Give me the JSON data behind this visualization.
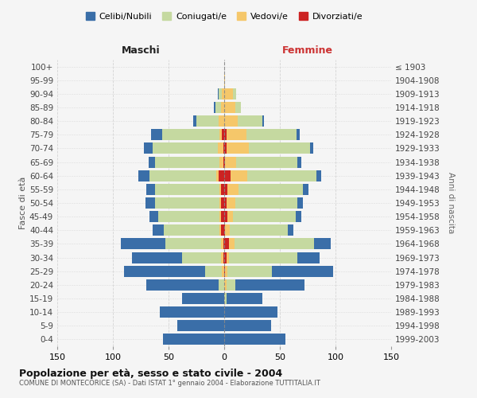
{
  "age_groups": [
    "0-4",
    "5-9",
    "10-14",
    "15-19",
    "20-24",
    "25-29",
    "30-34",
    "35-39",
    "40-44",
    "45-49",
    "50-54",
    "55-59",
    "60-64",
    "65-69",
    "70-74",
    "75-79",
    "80-84",
    "85-89",
    "90-94",
    "95-99",
    "100+"
  ],
  "birth_years": [
    "1999-2003",
    "1994-1998",
    "1989-1993",
    "1984-1988",
    "1979-1983",
    "1974-1978",
    "1969-1973",
    "1964-1968",
    "1959-1963",
    "1954-1958",
    "1949-1953",
    "1944-1948",
    "1939-1943",
    "1934-1938",
    "1929-1933",
    "1924-1928",
    "1919-1923",
    "1914-1918",
    "1909-1913",
    "1904-1908",
    "≤ 1903"
  ],
  "maschi": {
    "celibi": [
      55,
      42,
      58,
      38,
      65,
      73,
      45,
      40,
      10,
      8,
      9,
      8,
      10,
      6,
      8,
      10,
      3,
      1,
      1,
      0,
      0
    ],
    "coniugati": [
      0,
      0,
      0,
      0,
      5,
      15,
      35,
      50,
      50,
      55,
      58,
      58,
      60,
      58,
      58,
      52,
      20,
      5,
      3,
      0,
      0
    ],
    "vedovi": [
      0,
      0,
      0,
      0,
      0,
      2,
      2,
      2,
      1,
      1,
      1,
      1,
      2,
      3,
      5,
      2,
      5,
      3,
      2,
      0,
      0
    ],
    "divorziati": [
      0,
      0,
      0,
      0,
      0,
      0,
      1,
      1,
      3,
      3,
      3,
      3,
      5,
      1,
      1,
      2,
      0,
      0,
      0,
      0,
      0
    ]
  },
  "femmine": {
    "nubili": [
      55,
      42,
      48,
      32,
      62,
      55,
      20,
      15,
      5,
      5,
      5,
      5,
      4,
      3,
      3,
      3,
      2,
      0,
      0,
      0,
      0
    ],
    "coniugate": [
      0,
      0,
      0,
      2,
      8,
      40,
      62,
      72,
      52,
      56,
      56,
      58,
      62,
      55,
      55,
      45,
      22,
      5,
      3,
      0,
      0
    ],
    "vedove": [
      0,
      0,
      0,
      0,
      2,
      2,
      2,
      5,
      4,
      5,
      8,
      10,
      15,
      10,
      20,
      18,
      12,
      10,
      8,
      1,
      0
    ],
    "divorziate": [
      0,
      0,
      0,
      0,
      0,
      1,
      2,
      4,
      1,
      3,
      2,
      3,
      6,
      1,
      2,
      2,
      0,
      0,
      0,
      0,
      0
    ]
  },
  "colors": {
    "celibi": "#3a6ea8",
    "coniugati": "#c5d9a0",
    "vedovi": "#f5c76a",
    "divorziati": "#cc2222"
  },
  "title": "Popolazione per età, sesso e stato civile - 2004",
  "subtitle": "COMUNE DI MONTECORICE (SA) - Dati ISTAT 1° gennaio 2004 - Elaborazione TUTTITALIA.IT",
  "xlabel_left": "Maschi",
  "xlabel_right": "Femmine",
  "ylabel_left": "Fasce di età",
  "ylabel_right": "Anni di nascita",
  "xlim": 150,
  "legend_labels": [
    "Celibi/Nubili",
    "Coniugati/e",
    "Vedovi/e",
    "Divorziati/e"
  ],
  "background_color": "#f5f5f5",
  "grid_color": "#cccccc"
}
